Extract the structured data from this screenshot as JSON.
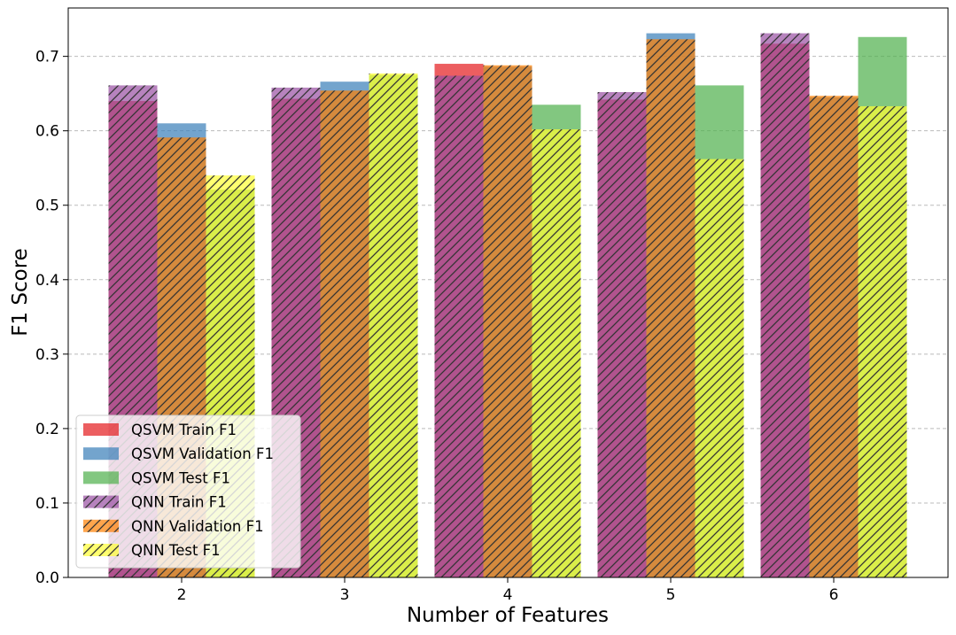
{
  "chart_data": {
    "type": "bar",
    "title": "",
    "xlabel": "Number of Features",
    "ylabel": "F1 Score",
    "categories": [
      "2",
      "3",
      "4",
      "5",
      "6"
    ],
    "ylim": [
      0,
      0.765
    ],
    "yticks": [
      "0.0",
      "0.1",
      "0.2",
      "0.3",
      "0.4",
      "0.5",
      "0.6",
      "0.7"
    ],
    "grid": "y dashed",
    "legend_position": "lower-left",
    "series": [
      {
        "name": "QSVM Train F1",
        "color": "#e41a1c",
        "hatch": false,
        "group": 0,
        "values": [
          0.64,
          0.643,
          0.69,
          0.642,
          0.717
        ]
      },
      {
        "name": "QSVM Validation F1",
        "color": "#377eb8",
        "hatch": false,
        "group": 1,
        "values": [
          0.61,
          0.666,
          0.686,
          0.731,
          0.645
        ]
      },
      {
        "name": "QSVM Test F1",
        "color": "#4daf4a",
        "hatch": false,
        "group": 2,
        "values": [
          0.521,
          0.675,
          0.635,
          0.661,
          0.726
        ]
      },
      {
        "name": "QNN Train F1",
        "color": "#984ea3",
        "hatch": true,
        "group": 0,
        "values": [
          0.661,
          0.658,
          0.674,
          0.652,
          0.731
        ]
      },
      {
        "name": "QNN Validation F1",
        "color": "#ff7f00",
        "hatch": true,
        "group": 1,
        "values": [
          0.591,
          0.654,
          0.688,
          0.723,
          0.647
        ]
      },
      {
        "name": "QNN Test F1",
        "color": "#ffff33",
        "hatch": true,
        "group": 2,
        "values": [
          0.54,
          0.677,
          0.602,
          0.562,
          0.633
        ]
      }
    ]
  }
}
